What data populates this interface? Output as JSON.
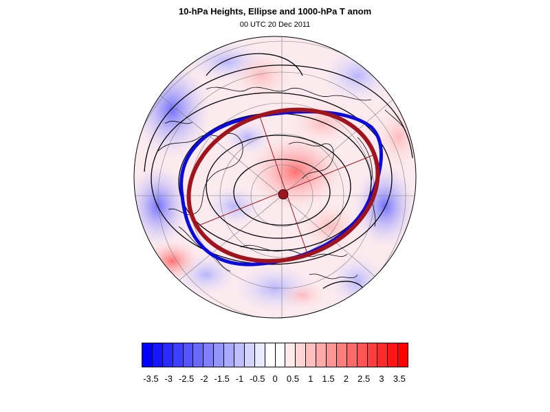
{
  "title": "10-hPa Heights, Ellipse and 1000-hPa T anom",
  "subtitle": "00 UTC 20 Dec 2011",
  "map": {
    "projection": "polar-stereographic-north",
    "field_shading": "1000-hPa temperature anomaly",
    "contours": "10-hPa geopotential heights",
    "ellipse_color": "#a0141e",
    "contour_highlight_color": "#0a0adc",
    "land_outline_color": "#000000"
  },
  "colorbar": {
    "tick_labels": [
      "-3.5",
      "-3",
      "-2.5",
      "-2",
      "-1.5",
      "-1",
      "-0.5",
      "0",
      "0.5",
      "1",
      "1.5",
      "2",
      "2.5",
      "3",
      "3.5"
    ],
    "colors": [
      "#0000ff",
      "#1515ff",
      "#2a2aff",
      "#3f3fff",
      "#5454ff",
      "#6a6aff",
      "#7f7fff",
      "#9494ff",
      "#a9a9ff",
      "#bfbfff",
      "#d4d4ff",
      "#e9e9ff",
      "#ffffff",
      "#ffffff",
      "#ffe9e9",
      "#ffd4d4",
      "#ffbfbf",
      "#ffa9a9",
      "#ff9494",
      "#ff7f7f",
      "#ff6a6a",
      "#ff5454",
      "#ff3f3f",
      "#ff2a2a",
      "#ff1515",
      "#ff0000"
    ]
  }
}
